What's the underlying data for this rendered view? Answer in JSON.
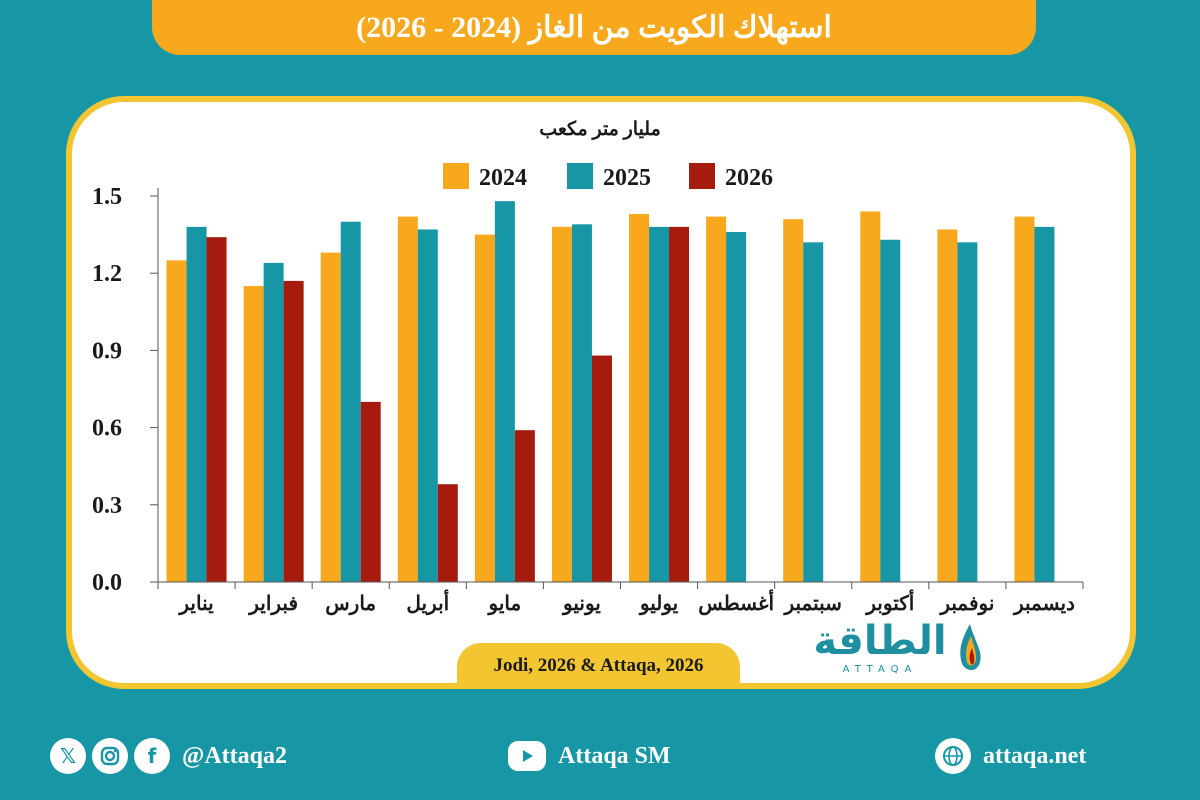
{
  "title": "استهلاك الكويت من الغاز (2024 - 2026)",
  "source": "Jodi, 2026 & Attaqa, 2026",
  "logo": {
    "text": "الطاقة",
    "subtitle": "ATTAQA"
  },
  "footer": {
    "social_handle": "@Attaqa2",
    "youtube": "Attaqa SM",
    "website": "attaqa.net",
    "icons": [
      "x-icon",
      "instagram-icon",
      "facebook-icon",
      "youtube-icon",
      "globe-icon"
    ]
  },
  "colors": {
    "2024": "#f8a81d",
    "2025": "#1797a6",
    "2026": "#a51c0f",
    "background": "#1797a6",
    "accent": "#f3c531"
  },
  "chart_data": {
    "type": "bar",
    "ylabel": "مليار متر مكعب",
    "ylim": [
      0,
      1.5
    ],
    "yticks": [
      "0.0",
      "0.3",
      "0.6",
      "0.9",
      "1.2",
      "1.5"
    ],
    "legend_position": "top-center",
    "grid": false,
    "categories": [
      "يناير",
      "فبراير",
      "مارس",
      "أبريل",
      "مايو",
      "يونيو",
      "يوليو",
      "أغسطس",
      "سبتمبر",
      "أكتوبر",
      "نوفمبر",
      "ديسمبر"
    ],
    "series": [
      {
        "name": "2024",
        "color": "#f8a81d",
        "values": [
          1.25,
          1.15,
          1.28,
          1.42,
          1.35,
          1.38,
          1.43,
          1.42,
          1.41,
          1.44,
          1.37,
          1.42
        ]
      },
      {
        "name": "2025",
        "color": "#1797a6",
        "values": [
          1.38,
          1.24,
          1.4,
          1.37,
          1.48,
          1.39,
          1.38,
          1.36,
          1.32,
          1.33,
          1.32,
          1.38
        ]
      },
      {
        "name": "2026",
        "color": "#a51c0f",
        "values": [
          1.34,
          1.17,
          0.7,
          0.38,
          0.59,
          0.88,
          1.38,
          null,
          null,
          null,
          null,
          null
        ]
      }
    ]
  }
}
